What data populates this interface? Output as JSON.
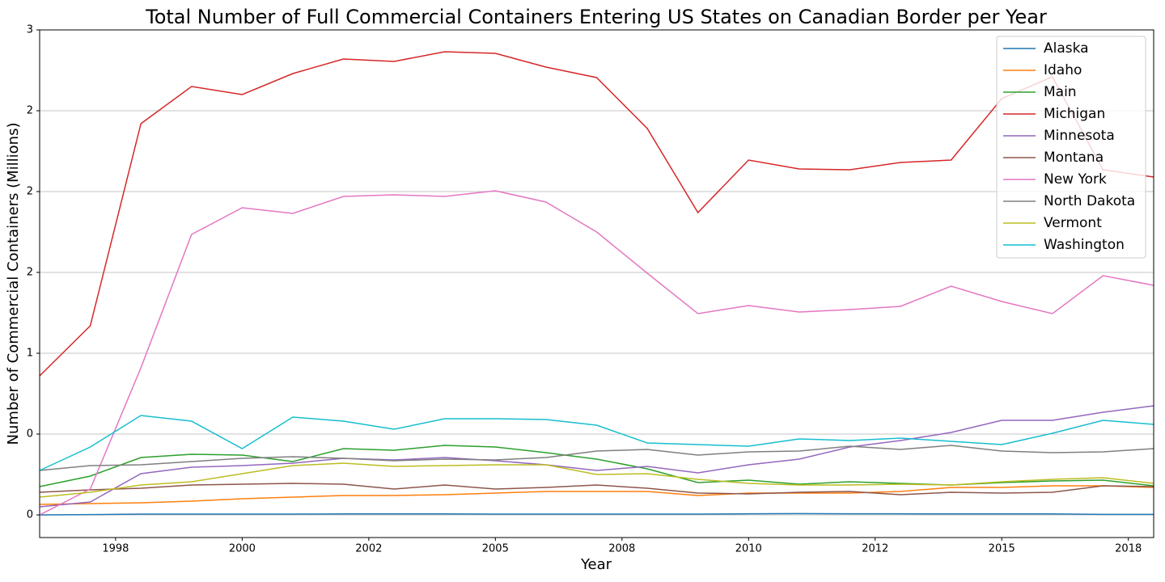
{
  "chart_data": {
    "type": "line",
    "title": "Total Number of Full Commercial Containers Entering US States on Canadian Border per Year",
    "x_label": "Year",
    "y_label": "Number of Commercial Containers (Millions)",
    "x": [
      1996,
      1997,
      1998,
      1999,
      2000,
      2001,
      2002,
      2003,
      2004,
      2005,
      2006,
      2007,
      2008,
      2009,
      2010,
      2011,
      2012,
      2013,
      2014,
      2015,
      2016,
      2017,
      2018
    ],
    "xlim": [
      1996,
      2018
    ],
    "xticks": [
      {
        "value": 1997.5,
        "label": "1998"
      },
      2000,
      {
        "value": 2002.5,
        "label": "2002"
      },
      2005,
      {
        "value": 2007.5,
        "label": "2008"
      },
      2010,
      {
        "value": 2012.5,
        "label": "2012"
      },
      2015,
      {
        "value": 2017.5,
        "label": "2018"
      }
    ],
    "ylim": [
      -0.14,
      3
    ],
    "yticks": [
      0,
      {
        "value": 0.5,
        "label": "0"
      },
      1,
      {
        "value": 1.5,
        "label": "2"
      },
      {
        "value": 2,
        "label": "2"
      },
      {
        "value": 2.5,
        "label": "2"
      },
      3
    ],
    "grid": true,
    "legend": "upper right",
    "series": [
      {
        "name": "Alaska",
        "color": "#1f77b4",
        "values": [
          0,
          0.002,
          0.005,
          0.005,
          0.005,
          0.005,
          0.006,
          0.006,
          0.006,
          0.005,
          0.005,
          0.005,
          0.005,
          0.005,
          0.007,
          0.008,
          0.007,
          0.007,
          0.006,
          0.006,
          0.006,
          0.003,
          0.003
        ]
      },
      {
        "name": "Idaho",
        "color": "#ff7f0e",
        "values": [
          0.065,
          0.07,
          0.075,
          0.085,
          0.1,
          0.11,
          0.12,
          0.12,
          0.125,
          0.135,
          0.145,
          0.145,
          0.145,
          0.12,
          0.135,
          0.135,
          0.135,
          0.145,
          0.17,
          0.17,
          0.18,
          0.18,
          0.17
        ]
      },
      {
        "name": "Main",
        "color": "#2ca02c",
        "values": [
          0.175,
          0.24,
          0.355,
          0.375,
          0.37,
          0.33,
          0.41,
          0.4,
          0.43,
          0.42,
          0.385,
          0.345,
          0.285,
          0.2,
          0.215,
          0.19,
          0.205,
          0.195,
          0.185,
          0.2,
          0.21,
          0.215,
          0.18
        ]
      },
      {
        "name": "Michigan",
        "color": "#d62728",
        "values": [
          0.86,
          1.17,
          2.42,
          2.65,
          2.6,
          2.73,
          2.82,
          2.805,
          2.865,
          2.855,
          2.77,
          2.705,
          2.39,
          1.87,
          2.195,
          2.14,
          2.135,
          2.18,
          2.195,
          2.575,
          2.71,
          2.135,
          2.09
        ]
      },
      {
        "name": "Minnesota",
        "color": "#9467bd",
        "values": [
          0.05,
          0.08,
          0.255,
          0.295,
          0.305,
          0.32,
          0.35,
          0.34,
          0.355,
          0.335,
          0.31,
          0.275,
          0.3,
          0.26,
          0.31,
          0.345,
          0.42,
          0.46,
          0.51,
          0.585,
          0.585,
          0.635,
          0.675
        ]
      },
      {
        "name": "Montana",
        "color": "#8c564b",
        "values": [
          0.14,
          0.155,
          0.165,
          0.185,
          0.19,
          0.195,
          0.19,
          0.16,
          0.185,
          0.16,
          0.17,
          0.185,
          0.165,
          0.135,
          0.13,
          0.14,
          0.145,
          0.125,
          0.14,
          0.135,
          0.14,
          0.18,
          0.175
        ]
      },
      {
        "name": "New York",
        "color": "#e377c2",
        "values": [
          0,
          0.16,
          0.91,
          1.735,
          1.9,
          1.865,
          1.97,
          1.98,
          1.97,
          2.005,
          1.935,
          1.75,
          1.495,
          1.245,
          1.295,
          1.255,
          1.27,
          1.29,
          1.415,
          1.32,
          1.245,
          1.48,
          1.42
        ]
      },
      {
        "name": "North Dakota",
        "color": "#7f7f7f",
        "values": [
          0.275,
          0.305,
          0.31,
          0.33,
          0.35,
          0.36,
          0.35,
          0.335,
          0.345,
          0.34,
          0.355,
          0.395,
          0.405,
          0.37,
          0.39,
          0.395,
          0.425,
          0.405,
          0.43,
          0.395,
          0.385,
          0.39,
          0.41
        ]
      },
      {
        "name": "Vermont",
        "color": "#bcbd22",
        "values": [
          0.11,
          0.14,
          0.185,
          0.205,
          0.255,
          0.305,
          0.32,
          0.3,
          0.305,
          0.31,
          0.31,
          0.25,
          0.255,
          0.22,
          0.195,
          0.185,
          0.185,
          0.19,
          0.185,
          0.205,
          0.22,
          0.23,
          0.195
        ]
      },
      {
        "name": "Washington",
        "color": "#17becf",
        "values": [
          0.275,
          0.42,
          0.615,
          0.58,
          0.41,
          0.605,
          0.58,
          0.53,
          0.595,
          0.595,
          0.59,
          0.555,
          0.445,
          0.435,
          0.425,
          0.47,
          0.46,
          0.475,
          0.455,
          0.435,
          0.505,
          0.585,
          0.56
        ]
      }
    ]
  }
}
